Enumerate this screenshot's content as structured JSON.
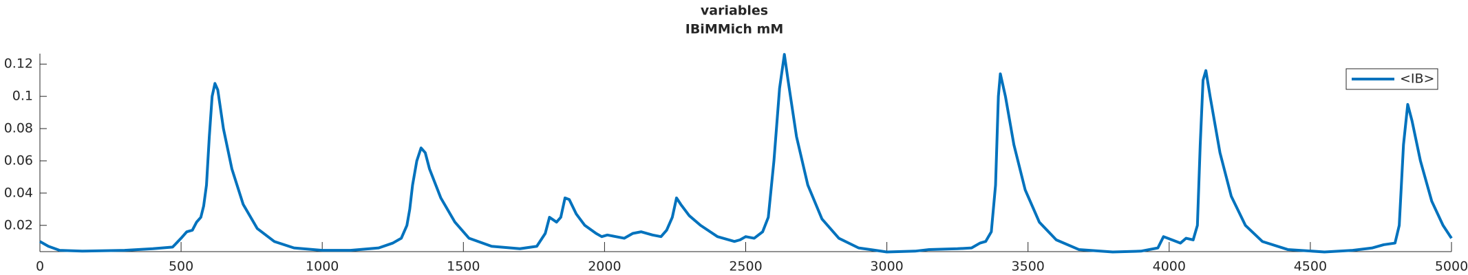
{
  "chart_data": {
    "type": "line",
    "title": "variables",
    "subtitle": "IBiMMich mM",
    "x": [
      0,
      30,
      70,
      150,
      300,
      400,
      470,
      500,
      520,
      540,
      555,
      570,
      580,
      590,
      600,
      610,
      620,
      630,
      650,
      680,
      720,
      770,
      830,
      900,
      1000,
      1100,
      1200,
      1250,
      1280,
      1300,
      1310,
      1320,
      1335,
      1350,
      1365,
      1380,
      1420,
      1470,
      1520,
      1600,
      1700,
      1760,
      1790,
      1805,
      1830,
      1845,
      1860,
      1875,
      1900,
      1930,
      1970,
      1990,
      2010,
      2040,
      2070,
      2100,
      2130,
      2170,
      2200,
      2220,
      2240,
      2255,
      2270,
      2300,
      2340,
      2400,
      2460,
      2480,
      2500,
      2530,
      2560,
      2580,
      2600,
      2620,
      2637,
      2650,
      2680,
      2720,
      2770,
      2830,
      2900,
      3000,
      3100,
      3150,
      3250,
      3300,
      3330,
      3350,
      3370,
      3385,
      3395,
      3402,
      3420,
      3450,
      3490,
      3540,
      3600,
      3680,
      3800,
      3900,
      3960,
      3980,
      4010,
      4040,
      4060,
      4085,
      4100,
      4110,
      4120,
      4130,
      4145,
      4180,
      4220,
      4270,
      4330,
      4420,
      4550,
      4650,
      4720,
      4760,
      4800,
      4815,
      4830,
      4845,
      4860,
      4890,
      4930,
      4970,
      5000
    ],
    "series": [
      {
        "name": "<IB>",
        "color": "#0072bd",
        "values": [
          0.01,
          0.007,
          0.0045,
          0.004,
          0.0045,
          0.0055,
          0.0065,
          0.012,
          0.016,
          0.017,
          0.022,
          0.025,
          0.032,
          0.045,
          0.075,
          0.1,
          0.108,
          0.104,
          0.08,
          0.055,
          0.033,
          0.018,
          0.01,
          0.006,
          0.0045,
          0.0045,
          0.006,
          0.009,
          0.012,
          0.02,
          0.03,
          0.045,
          0.06,
          0.068,
          0.065,
          0.055,
          0.037,
          0.022,
          0.012,
          0.007,
          0.0055,
          0.007,
          0.015,
          0.025,
          0.022,
          0.025,
          0.037,
          0.036,
          0.027,
          0.02,
          0.015,
          0.013,
          0.014,
          0.013,
          0.012,
          0.015,
          0.016,
          0.014,
          0.013,
          0.017,
          0.025,
          0.037,
          0.033,
          0.026,
          0.02,
          0.013,
          0.01,
          0.011,
          0.013,
          0.012,
          0.016,
          0.025,
          0.06,
          0.105,
          0.126,
          0.11,
          0.075,
          0.045,
          0.024,
          0.012,
          0.006,
          0.0035,
          0.004,
          0.005,
          0.0055,
          0.006,
          0.009,
          0.01,
          0.016,
          0.045,
          0.1,
          0.114,
          0.1,
          0.07,
          0.042,
          0.022,
          0.011,
          0.005,
          0.0035,
          0.004,
          0.006,
          0.013,
          0.011,
          0.009,
          0.012,
          0.011,
          0.02,
          0.07,
          0.11,
          0.116,
          0.1,
          0.065,
          0.038,
          0.02,
          0.01,
          0.005,
          0.0035,
          0.0045,
          0.006,
          0.008,
          0.009,
          0.02,
          0.07,
          0.095,
          0.085,
          0.06,
          0.035,
          0.02,
          0.012
        ]
      }
    ],
    "xlim": [
      0,
      5000
    ],
    "xticks": [
      0,
      500,
      1000,
      1500,
      2000,
      2500,
      3000,
      3500,
      4000,
      4500,
      5000
    ],
    "ylim": [
      0.0037,
      0.1265
    ],
    "yticks": [
      0.02,
      0.04,
      0.06,
      0.08,
      0.1,
      0.12
    ],
    "legend": "top-right"
  }
}
